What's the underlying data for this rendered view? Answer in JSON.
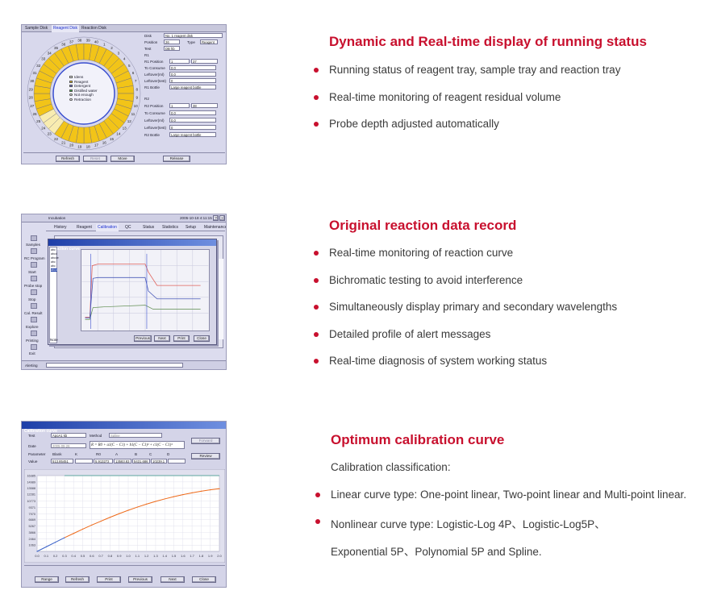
{
  "colors": {
    "accent": "#c8102e",
    "panel": "#d8d8ec",
    "tray_yellow": "#f2c418",
    "tray_blue": "#3a4fd0",
    "curve_orange": "#ee6a1a",
    "curve_blue": "#3b62c8"
  },
  "section1": {
    "title": "Dynamic and Real-time display of running status",
    "bullets": [
      "Running status of reagent tray, sample tray and reaction tray",
      "Real-time monitoring of reagent residual volume",
      "Probe depth adjusted automatically"
    ],
    "screenshot": {
      "tabs": [
        "Sample Disk",
        "Reagent Disk",
        "Reaction Disk"
      ],
      "tray_numbers": [
        "37",
        "38",
        "39",
        "40",
        "1",
        "2",
        "3",
        "4",
        "5",
        "6",
        "7",
        "8",
        "9",
        "10",
        "11",
        "12",
        "13",
        "14",
        "15",
        "16",
        "17",
        "18",
        "19",
        "20",
        "21",
        "22",
        "23",
        "24",
        "25",
        "26",
        "27",
        "28",
        "29",
        "30",
        "31",
        "32",
        "33",
        "34",
        "35",
        "36"
      ],
      "legend": [
        "Idens",
        "Reagent",
        "Detergent",
        "Distilled water",
        "Not enough",
        "Retraction"
      ],
      "labels": {
        "disk": "Disk",
        "position": "Position",
        "type": "Type",
        "test": "Test",
        "r1_head": "R1",
        "r1_position": "R1 Position",
        "to_consume": "To Consume",
        "leftover_ml": "Leftover(ml)",
        "leftover_test": "Leftover(test)",
        "r1_bottle": "R1 Bottle",
        "r2_head": "R2",
        "r2_position": "R2 Position",
        "r2_bottle": "R2 Bottle"
      },
      "values": {
        "disk": "No. 1 reagent disk",
        "position": "26",
        "type": "Reagent",
        "test": "DB hb",
        "r1_position": "1",
        "r1_pos_b": "37",
        "to_consume": "0.0",
        "leftover_ml": "0.0",
        "leftover_test": "0",
        "r1_bottle": "Large reagent bottle",
        "r2_position": "1",
        "r2_pos_b": "38",
        "r2_to_consume": "0.0",
        "r2_leftover_ml": "0.0",
        "r2_leftover_test": "0",
        "r2_bottle": "Large reagent bottle"
      },
      "buttons": [
        "Refresh",
        "Reset",
        "Move",
        "Release"
      ]
    }
  },
  "section2": {
    "title": "Original reaction data record",
    "bullets": [
      "Real-time monitoring of reaction curve",
      "Bichromatic testing to avoid interference",
      "Simultaneously display primary and secondary wavelengths",
      "Detailed profile of alert messages",
      "Real-time diagnosis of system working status"
    ],
    "screenshot": {
      "app_title": "Incubation",
      "datetime": "2005-10-18 4:11:15 PM",
      "tabs": [
        "History",
        "Reagent",
        "Calibration",
        "QC",
        "Status",
        "Statistics",
        "Setup",
        "Maintenance"
      ],
      "side_items": [
        "Samples",
        "RC Program",
        "Start",
        "Probe stop",
        "Stop",
        "Cal. Result",
        "Explore",
        "Printing",
        "Exit"
      ],
      "window_title": "Reaction curve",
      "list_items": [
        "abc",
        "abcd",
        "abcde",
        "abc",
        "abc",
        "abcd"
      ],
      "buttons": [
        "Previous",
        "Next",
        "Print",
        "Close"
      ],
      "note_label": "Note",
      "status_left": "Alerting"
    }
  },
  "section3": {
    "title": "Optimum calibration curve",
    "intro": "Calibration classification:",
    "bullets": [
      "Linear curve type: One-point linear, Two-point linear and Multi-point linear.",
      "Nonlinear curve type: Logistic-Log 4P、Logistic-Log5P、"
    ],
    "continuation": "Exponential 5P、Polynomial 5P and  Spline.",
    "screenshot": {
      "window_title": "Calibration curve",
      "labels": {
        "test": "Test",
        "method": "Method",
        "date": "Date",
        "parameter": "Parameter",
        "value": "Value",
        "blank": "Blank",
        "k": "K",
        "r0": "R0",
        "a": "A",
        "b": "B",
        "c": "C",
        "d": "D"
      },
      "values": {
        "test": "ApoA1 kb",
        "method": "Spline",
        "date": "2005-09-26",
        "formula": "R = R0 + a1(C − C1) + b1(C − C1)² + c1(C − C1)³",
        "blank": "513.85451",
        "r0": "5.913272",
        "a": "13583.83",
        "b": "5431.686",
        "c": "10239.1"
      },
      "buttons_right": [
        "Forward",
        "Review"
      ],
      "buttons_bottom": [
        "Range",
        "Refresh",
        "Print",
        "Previous",
        "Next",
        "Close"
      ]
    },
    "chart_data": {
      "type": "line",
      "x": [
        0.0,
        0.1,
        0.2,
        0.3,
        0.4,
        0.5,
        0.6,
        0.7,
        0.8,
        0.9,
        1.0,
        1.1,
        1.2,
        1.3,
        1.4,
        1.5,
        1.6,
        1.7,
        1.8,
        1.9,
        2.0
      ],
      "x_ticks": [
        "0.0",
        "0.1",
        "0.2",
        "0.3",
        "0.4",
        "0.5",
        "0.6",
        "0.7",
        "0.8",
        "0.9",
        "1.0",
        "1.1",
        "1.2",
        "1.3",
        "1.4",
        "1.5",
        "1.6",
        "1.7",
        "1.8",
        "1.9",
        "2.0"
      ],
      "y_ticks": [
        "16385",
        "14989",
        "13588",
        "12281",
        "10773",
        "9371",
        "7970",
        "6669",
        "5267",
        "3866",
        "2464",
        "1063"
      ],
      "series": [
        {
          "values": [
            -300,
            700,
            1700,
            2700,
            3650,
            4600,
            5500,
            6350,
            7200,
            8000,
            8750,
            9450,
            10100,
            10700,
            11250,
            11750,
            12200,
            12600,
            12950,
            13250,
            13500
          ]
        }
      ],
      "ylim": [
        -300,
        16385
      ],
      "xlim": [
        0,
        2.0
      ],
      "grid": true,
      "linear_segment_end_x": 0.3
    }
  }
}
